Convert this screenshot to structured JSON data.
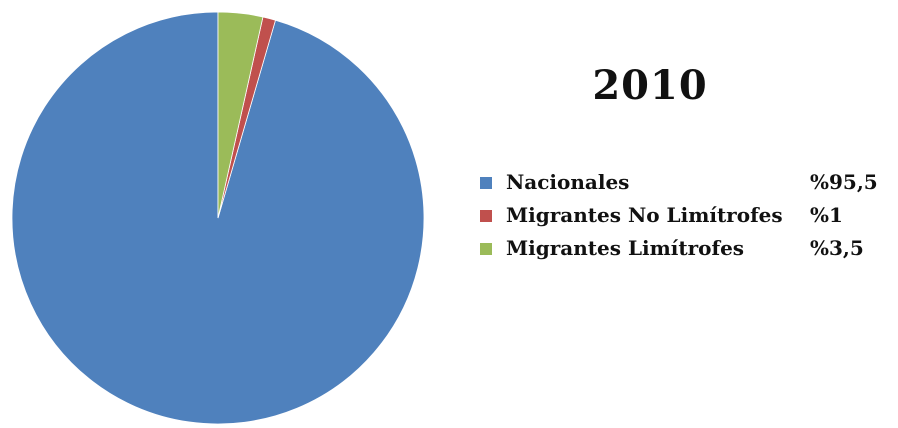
{
  "chart_data": {
    "type": "pie",
    "title": "2010",
    "slices": [
      {
        "label": "Nacionales",
        "value_label": "%95,5",
        "value": 95.5,
        "color": "#4F81BD"
      },
      {
        "label": "Migrantes No Limítrofes",
        "value_label": "%1",
        "value": 1,
        "color": "#C0504D"
      },
      {
        "label": "Migrantes Limítrofes",
        "value_label": "%3,5",
        "value": 3.5,
        "color": "#9BBB59"
      }
    ],
    "legend_position": "right",
    "start_angle": "top (12 o'clock)",
    "direction": "counter-clockwise"
  }
}
